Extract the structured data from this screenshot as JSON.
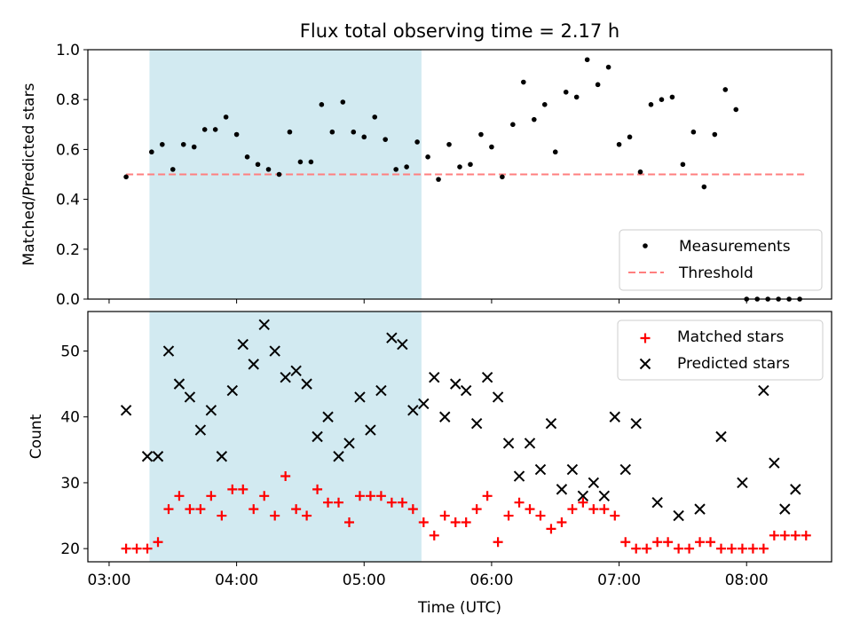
{
  "chart_data": [
    {
      "type": "scatter",
      "title": "Flux total observing time = 2.17 h",
      "xlabel": "",
      "ylabel": "Matched/Predicted stars",
      "ylim": [
        0,
        1.0
      ],
      "yticks": [
        "0.0",
        "0.2",
        "0.4",
        "0.6",
        "0.8",
        "1.0"
      ],
      "xlim": [
        "02:50",
        "08:40"
      ],
      "highlight_span": {
        "start": "03:19",
        "end": "05:27",
        "color": "#add8e6"
      },
      "legend_position": "lower-right",
      "series": [
        {
          "name": "Measurements",
          "marker": "dot",
          "color": "#000000",
          "x": [
            "03:08",
            "03:20",
            "03:25",
            "03:30",
            "03:35",
            "03:40",
            "03:45",
            "03:50",
            "03:55",
            "04:00",
            "04:05",
            "04:10",
            "04:15",
            "04:20",
            "04:25",
            "04:30",
            "04:35",
            "04:40",
            "04:45",
            "04:50",
            "04:55",
            "05:00",
            "05:05",
            "05:10",
            "05:15",
            "05:20",
            "05:25",
            "05:30",
            "05:35",
            "05:40",
            "05:45",
            "05:50",
            "05:55",
            "06:00",
            "06:05",
            "06:10",
            "06:15",
            "06:20",
            "06:25",
            "06:30",
            "06:35",
            "06:40",
            "06:45",
            "06:50",
            "06:55",
            "07:00",
            "07:05",
            "07:10",
            "07:15",
            "07:20",
            "07:25",
            "07:30",
            "07:35",
            "07:40",
            "07:45",
            "07:50",
            "07:55",
            "08:00",
            "08:05",
            "08:10",
            "08:15",
            "08:20",
            "08:25"
          ],
          "y": [
            0.49,
            0.59,
            0.62,
            0.52,
            0.62,
            0.61,
            0.68,
            0.68,
            0.73,
            0.66,
            0.57,
            0.54,
            0.52,
            0.5,
            0.67,
            0.55,
            0.55,
            0.78,
            0.67,
            0.79,
            0.67,
            0.65,
            0.73,
            0.64,
            0.52,
            0.53,
            0.63,
            0.57,
            0.48,
            0.62,
            0.53,
            0.54,
            0.66,
            0.61,
            0.49,
            0.7,
            0.87,
            0.72,
            0.78,
            0.59,
            0.83,
            0.81,
            0.96,
            0.86,
            0.93,
            0.62,
            0.65,
            0.51,
            0.78,
            0.8,
            0.81,
            0.54,
            0.67,
            0.45,
            0.66,
            0.84,
            0.76,
            0.0,
            0.0,
            0.0,
            0.0,
            0.0,
            0.0
          ]
        },
        {
          "name": "Threshold",
          "marker": "dashed-line",
          "color": "#ff7f7f",
          "x": [
            "03:08",
            "08:28"
          ],
          "y": [
            0.5,
            0.5
          ]
        }
      ]
    },
    {
      "type": "scatter",
      "title": "",
      "xlabel": "Time (UTC)",
      "ylabel": "Count",
      "ylim": [
        18,
        56
      ],
      "yticks": [
        "20",
        "30",
        "40",
        "50"
      ],
      "xlim": [
        "02:50",
        "08:40"
      ],
      "xticks": [
        "03:00",
        "04:00",
        "05:00",
        "06:00",
        "07:00",
        "08:00"
      ],
      "highlight_span": {
        "start": "03:19",
        "end": "05:27",
        "color": "#add8e6"
      },
      "legend_position": "upper-right",
      "series": [
        {
          "name": "Matched stars",
          "marker": "plus",
          "color": "#ff0000",
          "x": [
            "03:08",
            "03:13",
            "03:18",
            "03:23",
            "03:28",
            "03:33",
            "03:38",
            "03:43",
            "03:48",
            "03:53",
            "03:58",
            "04:03",
            "04:08",
            "04:13",
            "04:18",
            "04:23",
            "04:28",
            "04:33",
            "04:38",
            "04:43",
            "04:48",
            "04:53",
            "04:58",
            "05:03",
            "05:08",
            "05:13",
            "05:18",
            "05:23",
            "05:28",
            "05:33",
            "05:38",
            "05:43",
            "05:48",
            "05:53",
            "05:58",
            "06:03",
            "06:08",
            "06:13",
            "06:18",
            "06:23",
            "06:28",
            "06:33",
            "06:38",
            "06:43",
            "06:48",
            "06:53",
            "06:58",
            "07:03",
            "07:08",
            "07:13",
            "07:18",
            "07:23",
            "07:28",
            "07:33",
            "07:38",
            "07:43",
            "07:48",
            "07:53",
            "07:58",
            "08:03",
            "08:08",
            "08:13",
            "08:18",
            "08:23",
            "08:28"
          ],
          "y": [
            20,
            20,
            20,
            21,
            26,
            28,
            26,
            26,
            28,
            25,
            29,
            29,
            26,
            28,
            25,
            31,
            26,
            25,
            29,
            27,
            27,
            24,
            28,
            28,
            28,
            27,
            27,
            26,
            24,
            22,
            25,
            24,
            24,
            26,
            28,
            21,
            25,
            27,
            26,
            25,
            23,
            24,
            26,
            27,
            26,
            26,
            25,
            21,
            20,
            20,
            21,
            21,
            20,
            20,
            21,
            21,
            20,
            20,
            20,
            20,
            20,
            22,
            22,
            22,
            22
          ]
        },
        {
          "name": "Predicted stars",
          "marker": "x",
          "color": "#000000",
          "x": [
            "03:08",
            "03:18",
            "03:23",
            "03:28",
            "03:33",
            "03:38",
            "03:43",
            "03:48",
            "03:53",
            "03:58",
            "04:03",
            "04:08",
            "04:13",
            "04:18",
            "04:23",
            "04:28",
            "04:33",
            "04:38",
            "04:43",
            "04:48",
            "04:53",
            "04:58",
            "05:03",
            "05:08",
            "05:13",
            "05:18",
            "05:23",
            "05:28",
            "05:33",
            "05:38",
            "05:43",
            "05:48",
            "05:53",
            "05:58",
            "06:03",
            "06:08",
            "06:13",
            "06:18",
            "06:23",
            "06:28",
            "06:33",
            "06:38",
            "06:43",
            "06:48",
            "06:53",
            "06:58",
            "07:03",
            "07:08",
            "07:18",
            "07:28",
            "07:38",
            "07:48",
            "07:58",
            "08:08",
            "08:13",
            "08:18",
            "08:23"
          ],
          "y": [
            41,
            34,
            34,
            50,
            45,
            43,
            38,
            41,
            34,
            44,
            51,
            48,
            54,
            50,
            46,
            47,
            45,
            37,
            40,
            34,
            36,
            43,
            38,
            44,
            52,
            51,
            41,
            42,
            46,
            40,
            45,
            44,
            39,
            46,
            43,
            36,
            31,
            36,
            32,
            39,
            29,
            32,
            28,
            30,
            28,
            40,
            32,
            39,
            27,
            25,
            26,
            37,
            30,
            44,
            33,
            26,
            29
          ]
        }
      ]
    }
  ]
}
